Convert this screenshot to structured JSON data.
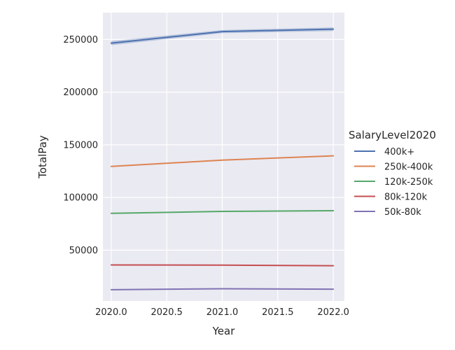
{
  "chart_data": {
    "type": "line",
    "xlabel": "Year",
    "ylabel": "TotalPay",
    "xlim": [
      1995.925,
      2022.1
    ],
    "ylim": [
      1750,
      275500
    ],
    "xticks": [
      "2020.0",
      "2020.5",
      "2021.0",
      "2021.5",
      "2022.0"
    ],
    "xtick_values": [
      2020.0,
      2020.5,
      2021.0,
      2021.5,
      2022.0
    ],
    "yticks": [
      "50000",
      "100000",
      "150000",
      "200000",
      "250000"
    ],
    "ytick_values": [
      50000,
      100000,
      150000,
      200000,
      250000
    ],
    "grid": true,
    "legend": {
      "title": "SalaryLevel2020",
      "placement": "right"
    },
    "x": [
      2020,
      2021,
      2022
    ],
    "series": [
      {
        "name": "400k+",
        "color": "#4c72b0",
        "values": [
          246500,
          257500,
          259800
        ],
        "band": [
          [
            244500,
            248500
          ],
          [
            256000,
            259000
          ],
          [
            258000,
            261500
          ]
        ]
      },
      {
        "name": "250k-400k",
        "color": "#dd8452",
        "values": [
          129500,
          135500,
          139500
        ]
      },
      {
        "name": "120k-250k",
        "color": "#55a868",
        "values": [
          85000,
          86800,
          87500
        ]
      },
      {
        "name": "80k-120k",
        "color": "#c44e52",
        "values": [
          36000,
          35800,
          35200
        ]
      },
      {
        "name": "50k-80k",
        "color": "#8172b3",
        "values": [
          12500,
          13400,
          13000
        ]
      }
    ]
  }
}
